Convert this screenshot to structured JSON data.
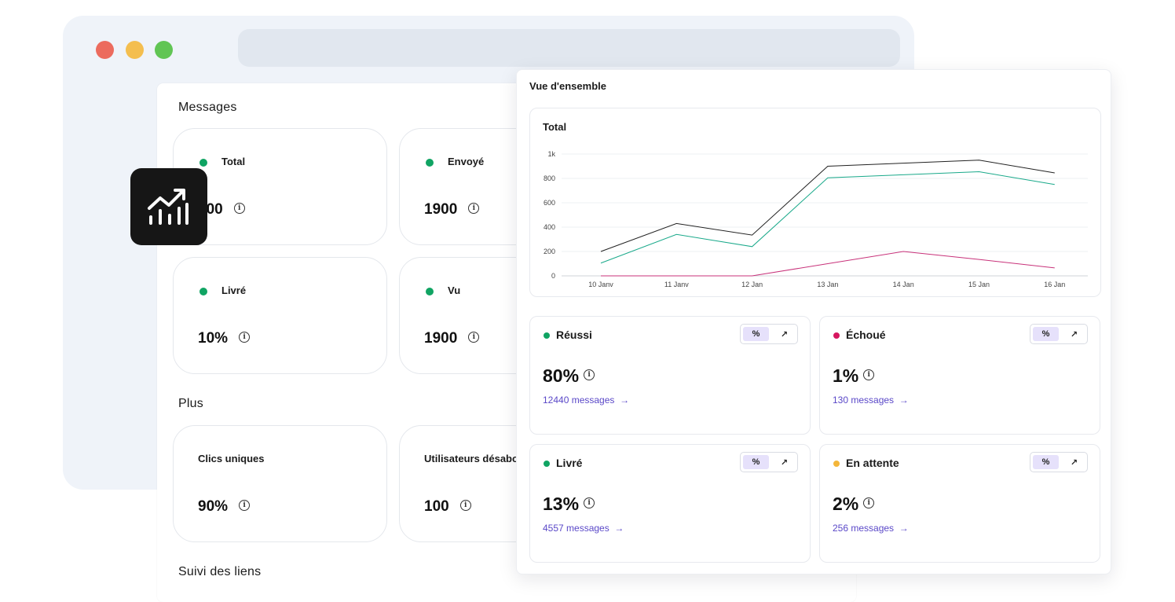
{
  "messages_panel": {
    "section_messages": "Messages",
    "section_plus": "Plus",
    "section_links": "Suivi des liens",
    "cards": [
      {
        "label": "Total",
        "value": "500"
      },
      {
        "label": "Envoyé",
        "value": "1900"
      },
      {
        "label": "Livré",
        "value": "10%"
      },
      {
        "label": "Vu",
        "value": "1900"
      },
      {
        "label": "Clics uniques",
        "value": "90%"
      },
      {
        "label": "Utilisateurs désabo",
        "value": "100"
      }
    ],
    "status_color": "#10a463"
  },
  "icons": {
    "badge": "chart-growth-icon",
    "info": "info-icon",
    "arrow": "arrow-right-icon",
    "trend": "trend-up-icon"
  },
  "overview": {
    "title": "Vue d'ensemble",
    "info_glyph": "i",
    "stats": [
      {
        "label": "Réussi",
        "value": "80%",
        "link": "12440 messages",
        "color": "#10a463",
        "toggle_a": "%",
        "toggle_b": "↗"
      },
      {
        "label": "Échoué",
        "value": "1%",
        "link": "130 messages",
        "color": "#d6165f",
        "toggle_a": "%",
        "toggle_b": "↗"
      },
      {
        "label": "Livré",
        "value": "13%",
        "link": "4557 messages",
        "color": "#10a463",
        "toggle_a": "%",
        "toggle_b": "↗"
      },
      {
        "label": "En attente",
        "value": "2%",
        "link": "256 messages",
        "color": "#f4b63a",
        "toggle_a": "%",
        "toggle_b": "↗"
      }
    ],
    "arrow_glyph": "→"
  },
  "chart_data": {
    "type": "line",
    "title": "Total",
    "categories": [
      "10 Janv",
      "11 Janv",
      "12 Jan",
      "13 Jan",
      "14 Jan",
      "15 Jan",
      "16 Jan"
    ],
    "ylim": [
      0,
      1000
    ],
    "yticks": [
      "0",
      "200",
      "400",
      "600",
      "800",
      "1k"
    ],
    "grid": true,
    "series": [
      {
        "color": "#222222",
        "values": [
          200,
          430,
          335,
          900,
          925,
          950,
          845
        ]
      },
      {
        "color": "#19a98a",
        "values": [
          105,
          340,
          240,
          805,
          830,
          855,
          750
        ]
      },
      {
        "color": "#c8327a",
        "values": [
          0,
          0,
          0,
          100,
          200,
          135,
          65
        ]
      }
    ]
  }
}
